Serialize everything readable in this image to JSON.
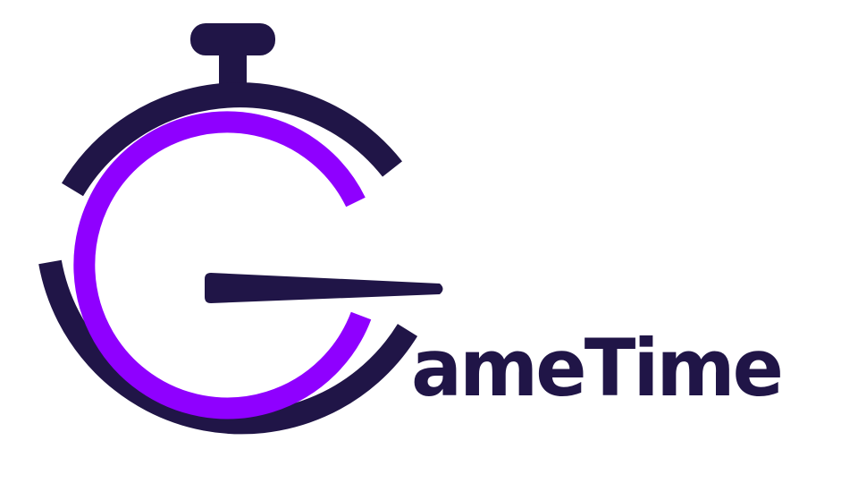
{
  "brand": {
    "wordmark_text": "ameTime",
    "logo_name": "GameTime",
    "colors": {
      "primary_dark": "#201547",
      "accent_purple": "#8f00ff",
      "background": "#ffffff"
    }
  },
  "icons": {
    "logo": "stopwatch-g-icon"
  }
}
